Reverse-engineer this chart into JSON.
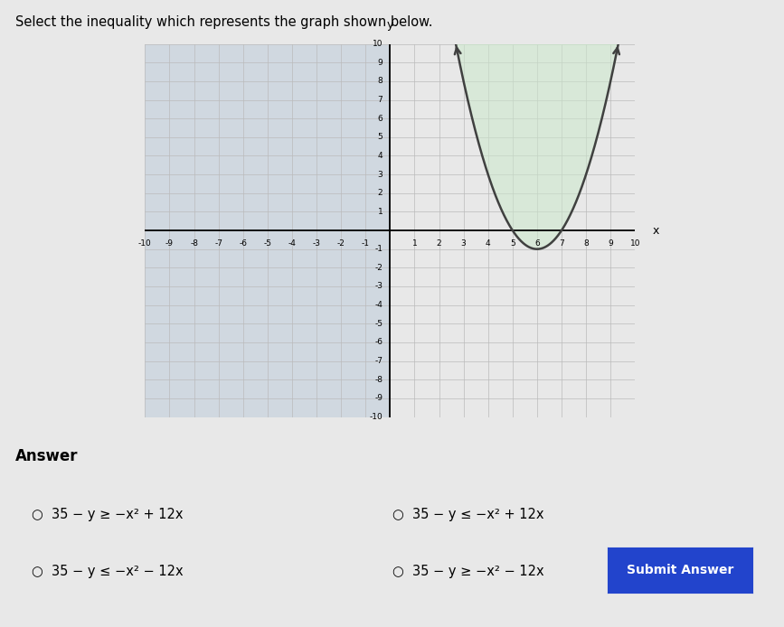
{
  "title": "Select the inequality which represents the graph shown below.",
  "xlim": [
    -10,
    10
  ],
  "ylim": [
    -10,
    10
  ],
  "xticks": [
    -10,
    -9,
    -8,
    -7,
    -6,
    -5,
    -4,
    -3,
    -2,
    -1,
    1,
    2,
    3,
    4,
    5,
    6,
    7,
    8,
    9,
    10
  ],
  "yticks": [
    -10,
    -9,
    -8,
    -7,
    -6,
    -5,
    -4,
    -3,
    -2,
    -1,
    1,
    2,
    3,
    4,
    5,
    6,
    7,
    8,
    9,
    10
  ],
  "parabola_a": 1,
  "parabola_b": -12,
  "parabola_c": 35,
  "shade_color": "#cce8cc",
  "shade_alpha": 0.55,
  "curve_color": "#404040",
  "curve_linewidth": 1.8,
  "grid_color": "#bbbbbb",
  "grid_linewidth": 0.5,
  "bg_color": "#e8e8e8",
  "left_bg_color": "#d0d8e0",
  "plot_bg_color": "#e8e8f0",
  "right_bg_color": "#e8e8e8",
  "answer_label": "Answer",
  "choices": [
    "35 − y ≥ −x² + 12x",
    "35 − y ≤ −x² + 12x",
    "35 − y ≤ −x² − 12x",
    "35 − y ≥ −x² − 12x"
  ],
  "submit_button_text": "Submit Answer",
  "submit_button_color": "#2244cc",
  "submit_button_text_color": "#ffffff"
}
